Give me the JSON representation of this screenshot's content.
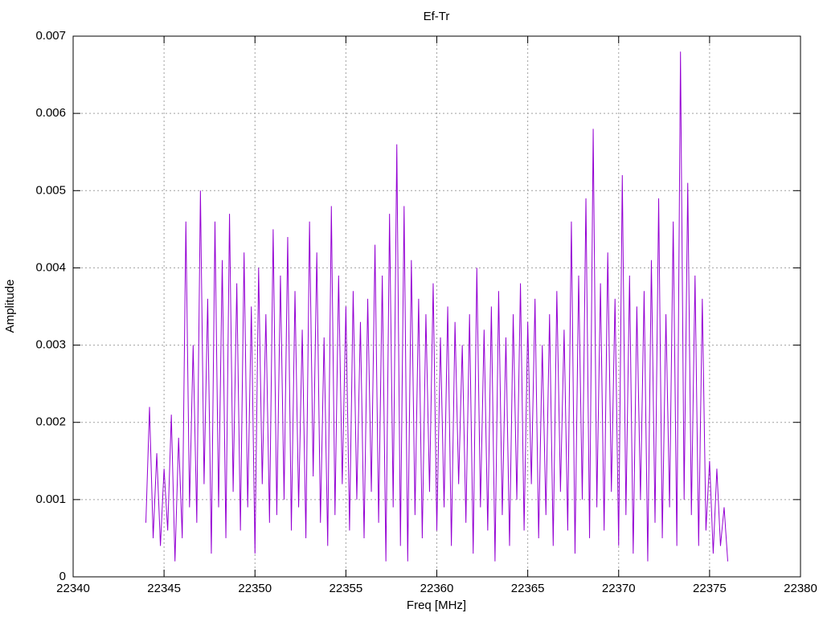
{
  "chart_data": {
    "type": "line",
    "title": "Ef-Tr",
    "x_label": "Freq [MHz]",
    "y_label": "Amplitude",
    "xlim": [
      22340,
      22380
    ],
    "xticks": [
      22340,
      22345,
      22350,
      22355,
      22360,
      22365,
      22370,
      22375,
      22380
    ],
    "ylim": [
      0,
      0.007
    ],
    "yticks": [
      0,
      0.001,
      0.002,
      0.003,
      0.004,
      0.005,
      0.006,
      0.007
    ],
    "grid": true,
    "series": [
      {
        "color": "#9400d3",
        "x": [
          22344.0,
          22344.2,
          22344.4,
          22344.6,
          22344.8,
          22345.0,
          22345.2,
          22345.4,
          22345.6,
          22345.8,
          22346.0,
          22346.2,
          22346.4,
          22346.6,
          22346.8,
          22347.0,
          22347.2,
          22347.4,
          22347.6,
          22347.8,
          22348.0,
          22348.2,
          22348.4,
          22348.6,
          22348.8,
          22349.0,
          22349.2,
          22349.4,
          22349.6,
          22349.8,
          22350.0,
          22350.2,
          22350.4,
          22350.6,
          22350.8,
          22351.0,
          22351.2,
          22351.4,
          22351.6,
          22351.8,
          22352.0,
          22352.2,
          22352.4,
          22352.6,
          22352.8,
          22353.0,
          22353.2,
          22353.4,
          22353.6,
          22353.8,
          22354.0,
          22354.2,
          22354.4,
          22354.6,
          22354.8,
          22355.0,
          22355.2,
          22355.4,
          22355.6,
          22355.8,
          22356.0,
          22356.2,
          22356.4,
          22356.6,
          22356.8,
          22357.0,
          22357.2,
          22357.4,
          22357.6,
          22357.8,
          22358.0,
          22358.2,
          22358.4,
          22358.6,
          22358.8,
          22359.0,
          22359.2,
          22359.4,
          22359.6,
          22359.8,
          22360.0,
          22360.2,
          22360.4,
          22360.6,
          22360.8,
          22361.0,
          22361.2,
          22361.4,
          22361.6,
          22361.8,
          22362.0,
          22362.2,
          22362.4,
          22362.6,
          22362.8,
          22363.0,
          22363.2,
          22363.4,
          22363.6,
          22363.8,
          22364.0,
          22364.2,
          22364.4,
          22364.6,
          22364.8,
          22365.0,
          22365.2,
          22365.4,
          22365.6,
          22365.8,
          22366.0,
          22366.2,
          22366.4,
          22366.6,
          22366.8,
          22367.0,
          22367.2,
          22367.4,
          22367.6,
          22367.8,
          22368.0,
          22368.2,
          22368.4,
          22368.6,
          22368.8,
          22369.0,
          22369.2,
          22369.4,
          22369.6,
          22369.8,
          22370.0,
          22370.2,
          22370.4,
          22370.6,
          22370.8,
          22371.0,
          22371.2,
          22371.4,
          22371.6,
          22371.8,
          22372.0,
          22372.2,
          22372.4,
          22372.6,
          22372.8,
          22373.0,
          22373.2,
          22373.4,
          22373.6,
          22373.8,
          22374.0,
          22374.2,
          22374.4,
          22374.6,
          22374.8,
          22375.0,
          22375.2,
          22375.4,
          22375.6,
          22375.8,
          22376.0
        ],
        "values": [
          0.0007,
          0.0022,
          0.0005,
          0.0016,
          0.0004,
          0.0014,
          0.0006,
          0.0021,
          0.0002,
          0.0018,
          0.0005,
          0.0046,
          0.0009,
          0.003,
          0.0007,
          0.005,
          0.0012,
          0.0036,
          0.0003,
          0.0046,
          0.0009,
          0.0041,
          0.0005,
          0.0047,
          0.0011,
          0.0038,
          0.0006,
          0.0042,
          0.0009,
          0.0035,
          0.0003,
          0.004,
          0.0012,
          0.0034,
          0.0007,
          0.0045,
          0.0008,
          0.0039,
          0.001,
          0.0044,
          0.0006,
          0.0037,
          0.0009,
          0.0032,
          0.0005,
          0.0046,
          0.0013,
          0.0042,
          0.0007,
          0.0031,
          0.0004,
          0.0048,
          0.0008,
          0.0039,
          0.0012,
          0.0035,
          0.0006,
          0.0037,
          0.001,
          0.0033,
          0.0005,
          0.0036,
          0.0011,
          0.0043,
          0.0007,
          0.0039,
          0.0002,
          0.0047,
          0.0009,
          0.0056,
          0.0004,
          0.0048,
          0.0002,
          0.0041,
          0.0008,
          0.0036,
          0.0005,
          0.0034,
          0.0011,
          0.0038,
          0.0006,
          0.0031,
          0.0009,
          0.0035,
          0.0004,
          0.0033,
          0.0012,
          0.003,
          0.0007,
          0.0034,
          0.0003,
          0.004,
          0.0009,
          0.0032,
          0.0006,
          0.0035,
          0.0002,
          0.0037,
          0.0008,
          0.0031,
          0.0004,
          0.0034,
          0.001,
          0.0038,
          0.0006,
          0.0033,
          0.0012,
          0.0036,
          0.0005,
          0.003,
          0.0008,
          0.0034,
          0.0004,
          0.0037,
          0.0011,
          0.0032,
          0.0006,
          0.0046,
          0.0003,
          0.0039,
          0.001,
          0.0049,
          0.0005,
          0.0058,
          0.0009,
          0.0038,
          0.0006,
          0.0042,
          0.0011,
          0.0036,
          0.0004,
          0.0052,
          0.0008,
          0.0039,
          0.0003,
          0.0035,
          0.001,
          0.0037,
          0.0002,
          0.0041,
          0.0007,
          0.0049,
          0.0005,
          0.0034,
          0.0009,
          0.0046,
          0.0004,
          0.0068,
          0.001,
          0.0051,
          0.0008,
          0.0039,
          0.0004,
          0.0036,
          0.0006,
          0.0015,
          0.0003,
          0.0014,
          0.0004,
          0.0009,
          0.0002
        ]
      }
    ]
  }
}
